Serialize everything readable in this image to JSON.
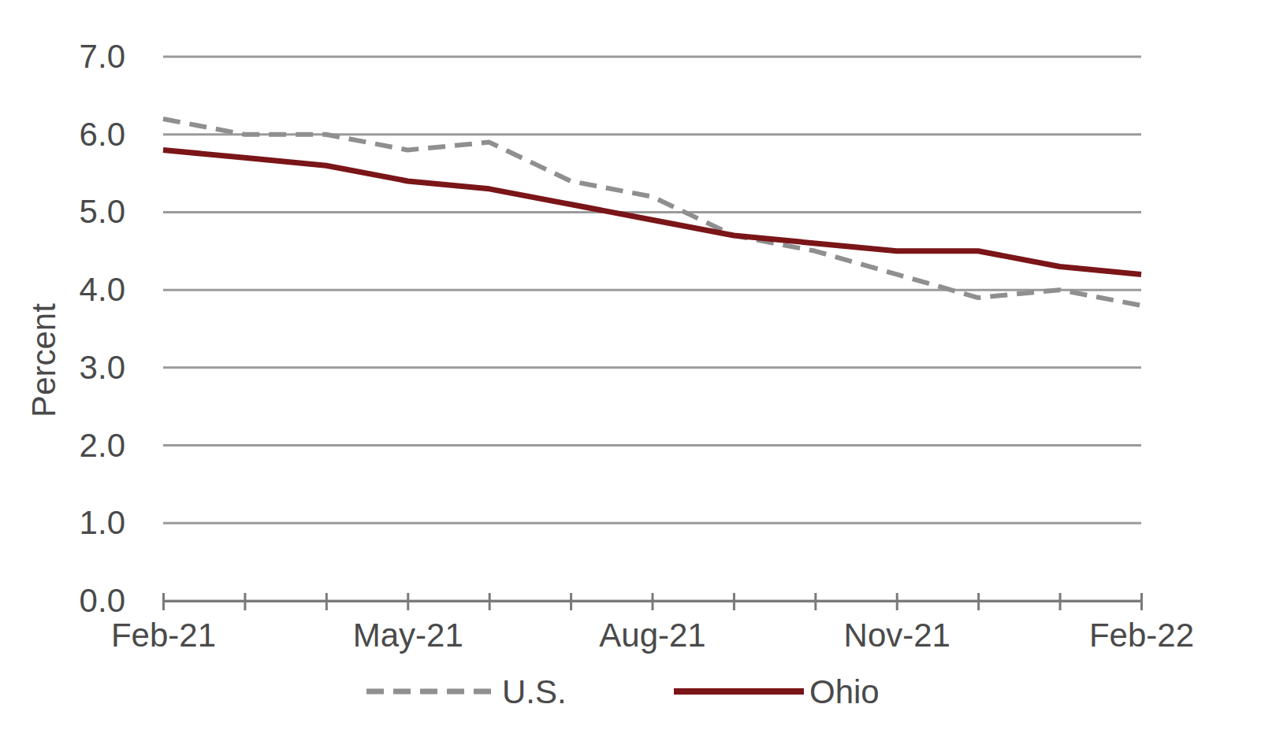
{
  "chart_data": {
    "type": "line",
    "y_label": "Percent",
    "categories": [
      "Feb-21",
      null,
      null,
      "May-21",
      null,
      null,
      "Aug-21",
      null,
      null,
      "Nov-21",
      null,
      null,
      "Feb-22"
    ],
    "series": [
      {
        "name": "U.S.",
        "color": "#8f8f8f",
        "line_style": "dashed",
        "values": [
          6.2,
          6.0,
          6.0,
          5.8,
          5.9,
          5.4,
          5.2,
          4.7,
          4.5,
          4.2,
          3.9,
          4.0,
          3.8
        ]
      },
      {
        "name": "Ohio",
        "color": "#7a1518",
        "line_style": "solid",
        "values": [
          5.8,
          5.7,
          5.6,
          5.4,
          5.3,
          5.1,
          4.9,
          4.7,
          4.6,
          4.5,
          4.5,
          4.3,
          4.2
        ]
      }
    ],
    "ylim": [
      0,
      7
    ],
    "yticks": [
      {
        "value": 0,
        "label": "0.0"
      },
      {
        "value": 1,
        "label": "1.0"
      },
      {
        "value": 2,
        "label": "2.0"
      },
      {
        "value": 3,
        "label": "3.0"
      },
      {
        "value": 4,
        "label": "4.0"
      },
      {
        "value": 5,
        "label": "5.0"
      },
      {
        "value": 6,
        "label": "6.0"
      },
      {
        "value": 7,
        "label": "7.0"
      }
    ],
    "grid": true,
    "legend": "bottom"
  }
}
